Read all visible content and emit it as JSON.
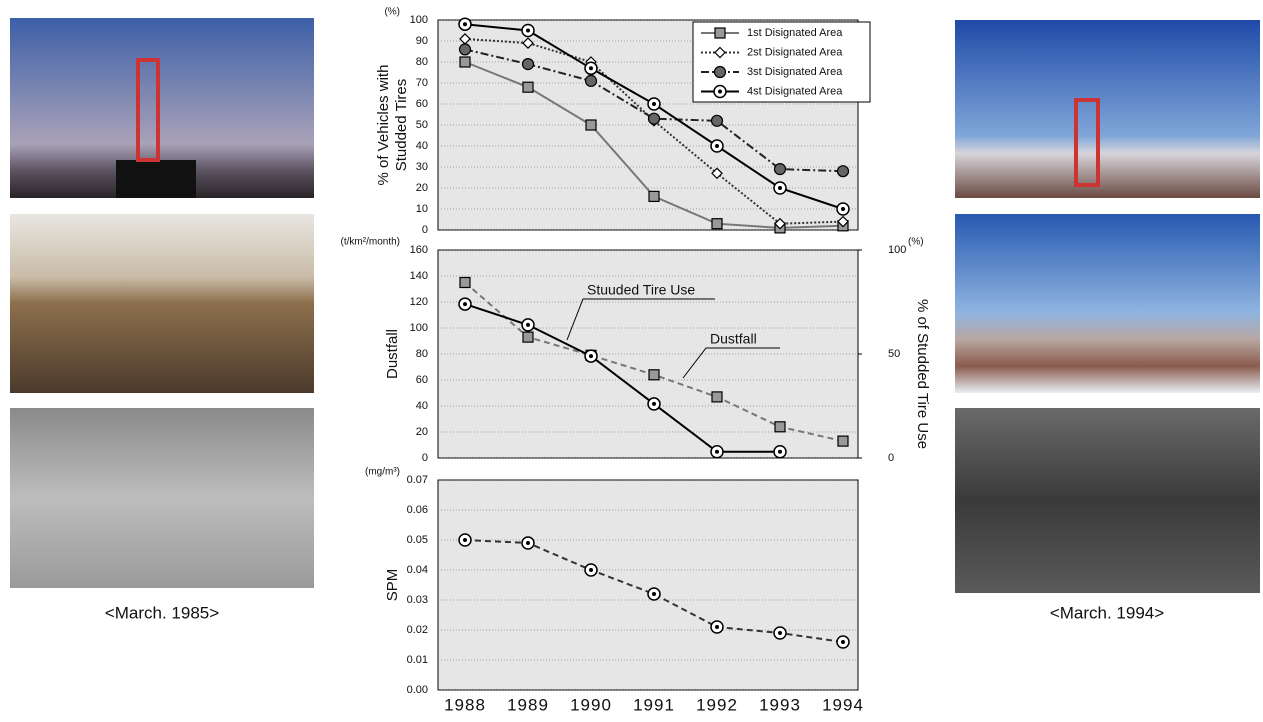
{
  "captions": {
    "left": "<March. 1985>",
    "right": "<March. 1994>"
  },
  "chart_data": [
    {
      "type": "line",
      "ylabel": [
        "% of Vehicles with",
        "Studded Tires"
      ],
      "yunit": "(%)",
      "ylim": [
        0,
        100
      ],
      "yticks": [
        0,
        10,
        20,
        30,
        40,
        50,
        60,
        70,
        80,
        90,
        100
      ],
      "grid": true,
      "legend": "upper right",
      "series": [
        {
          "name": "1st Disignated Area",
          "color": "#777777",
          "marker": "square",
          "dash": "solid",
          "values": [
            80,
            68,
            50,
            16,
            3,
            1,
            2
          ]
        },
        {
          "name": "2st Disignated Area",
          "color": "#333333",
          "marker": "diamond",
          "dash": "dotted",
          "values": [
            91,
            89,
            80,
            52,
            27,
            3,
            4
          ]
        },
        {
          "name": "3st Disignated Area",
          "color": "#222222",
          "marker": "circle",
          "dash": "dashdot",
          "values": [
            86,
            79,
            71,
            53,
            52,
            29,
            28
          ]
        },
        {
          "name": "4st Disignated Area",
          "color": "#000000",
          "marker": "ring",
          "dash": "solid",
          "values": [
            98,
            95,
            77,
            60,
            40,
            20,
            10
          ]
        }
      ]
    },
    {
      "type": "line",
      "ylabel": [
        "Dustfall"
      ],
      "yunit": "(t/km²/month)",
      "ylim": [
        0,
        160
      ],
      "yticks": [
        0,
        20,
        40,
        60,
        80,
        100,
        120,
        140,
        160
      ],
      "grid": true,
      "y2label": "% of Studded Tire Use",
      "y2unit": "(%)",
      "y2lim": [
        0,
        100
      ],
      "y2ticks": [
        0,
        50,
        100
      ],
      "series": [
        {
          "name": "Dustfall",
          "color": "#777777",
          "marker": "square",
          "dash": "dashed",
          "values": [
            135,
            93,
            79,
            64,
            47,
            24,
            13
          ]
        },
        {
          "name": "Stuuded Tire Use",
          "color": "#000000",
          "marker": "ring",
          "dash": "solid",
          "axis": "y2",
          "values": [
            74,
            64,
            49,
            26,
            3,
            3,
            null
          ]
        }
      ]
    },
    {
      "type": "line",
      "ylabel": [
        "SPM"
      ],
      "yunit": "(mg/m³)",
      "ylim": [
        0,
        0.07
      ],
      "yticks": [
        {
          "value": 0,
          "label": "0.00"
        },
        {
          "value": 0.01,
          "label": "0.01"
        },
        {
          "value": 0.02,
          "label": "0.02"
        },
        {
          "value": 0.03,
          "label": "0.03"
        },
        {
          "value": 0.04,
          "label": "0.04"
        },
        {
          "value": 0.05,
          "label": "0.05"
        },
        {
          "value": 0.06,
          "label": "0.06"
        },
        {
          "value": 0.07,
          "label": "0.07"
        }
      ],
      "grid": true,
      "categories": [
        "1988",
        "1989",
        "1990",
        "1991",
        "1992",
        "1993",
        "1994"
      ],
      "series": [
        {
          "name": "SPM",
          "color": "#333333",
          "marker": "ring",
          "dash": "dashed",
          "values": [
            0.05,
            0.049,
            0.04,
            0.032,
            0.021,
            0.019,
            0.016
          ]
        }
      ]
    }
  ]
}
